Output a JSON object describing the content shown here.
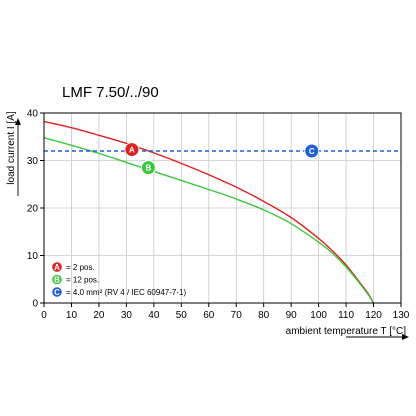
{
  "chart_data": {
    "type": "line",
    "title": "LMF 7.50/../90",
    "xlabel": "ambient temperature T [°C]",
    "ylabel": "load current I [A]",
    "xlim": [
      0,
      130
    ],
    "ylim": [
      0,
      40
    ],
    "x_ticks": [
      0,
      10,
      20,
      30,
      40,
      50,
      60,
      70,
      80,
      90,
      100,
      110,
      120,
      130
    ],
    "y_ticks": [
      0,
      10,
      20,
      30,
      40
    ],
    "grid": true,
    "legend_position": "bottom-left",
    "series": [
      {
        "name": "2 pos.",
        "badge": "A",
        "color": "#e41e1e",
        "style": "solid",
        "x": [
          0,
          10,
          20,
          30,
          40,
          50,
          60,
          70,
          80,
          90,
          100,
          105,
          110,
          115,
          118,
          120
        ],
        "y": [
          38.2,
          36.9,
          35.3,
          33.6,
          31.6,
          29.4,
          27.0,
          24.4,
          21.4,
          18.0,
          13.6,
          11.0,
          8.0,
          4.3,
          2.0,
          0
        ]
      },
      {
        "name": "12 pos.",
        "badge": "B",
        "color": "#39c839",
        "style": "solid",
        "x": [
          0,
          10,
          20,
          30,
          40,
          50,
          60,
          70,
          80,
          90,
          100,
          105,
          110,
          115,
          118,
          120
        ],
        "y": [
          34.8,
          33.2,
          31.5,
          29.6,
          27.7,
          25.8,
          23.9,
          21.9,
          19.6,
          16.7,
          12.8,
          10.5,
          7.6,
          4.1,
          1.8,
          0
        ]
      },
      {
        "name": "4.0 mm² (RV 4 / IEC 60947-7-1)",
        "badge": "C",
        "color": "#1f5fd6",
        "style": "dashed",
        "x": [
          0,
          130
        ],
        "y": [
          32,
          32
        ]
      }
    ],
    "annotations": [
      {
        "badge": "A",
        "x": 32,
        "y": 32.3
      },
      {
        "badge": "B",
        "x": 38,
        "y": 28.5
      },
      {
        "badge": "C",
        "x": 97.5,
        "y": 32
      }
    ],
    "legend": [
      {
        "badge": "A",
        "text": "= 2 pos.",
        "color": "#e41e1e"
      },
      {
        "badge": "B",
        "text": "= 12 pos.",
        "color": "#39c839"
      },
      {
        "badge": "C",
        "text": "= 4.0 mm² (RV 4 / IEC 60947-7-1)",
        "color": "#1f5fd6"
      }
    ]
  }
}
